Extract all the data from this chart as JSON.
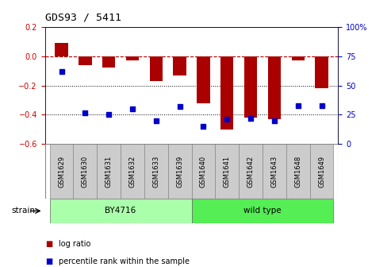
{
  "title": "GDS93 / 5411",
  "samples": [
    "GSM1629",
    "GSM1630",
    "GSM1631",
    "GSM1632",
    "GSM1633",
    "GSM1639",
    "GSM1640",
    "GSM1641",
    "GSM1642",
    "GSM1643",
    "GSM1648",
    "GSM1649"
  ],
  "log_ratio": [
    0.09,
    -0.06,
    -0.08,
    -0.03,
    -0.17,
    -0.13,
    -0.32,
    -0.5,
    -0.42,
    -0.43,
    -0.03,
    -0.22
  ],
  "percentile_rank": [
    62,
    27,
    25,
    30,
    20,
    32,
    15,
    21,
    22,
    20,
    33,
    33
  ],
  "bar_color": "#aa0000",
  "point_color": "#0000cc",
  "left_ylim": [
    -0.6,
    0.2
  ],
  "right_ylim": [
    0,
    100
  ],
  "left_yticks": [
    -0.6,
    -0.4,
    -0.2,
    0.0,
    0.2
  ],
  "right_yticks": [
    0,
    25,
    50,
    75,
    100
  ],
  "right_yticklabels": [
    "0",
    "25",
    "50",
    "75",
    "100%"
  ],
  "hline_y": 0.0,
  "dotted_lines": [
    -0.2,
    -0.4
  ],
  "by4716_color": "#aaffaa",
  "wildtype_color": "#55ee55",
  "sample_box_color": "#cccccc",
  "bg_color": "#ffffff",
  "bar_width": 0.55,
  "by4716_label": "BY4716",
  "wildtype_label": "wild type",
  "strain_label": "strain",
  "legend_log": "log ratio",
  "legend_pct": "percentile rank within the sample",
  "n_by4716": 6,
  "n_wildtype": 6
}
